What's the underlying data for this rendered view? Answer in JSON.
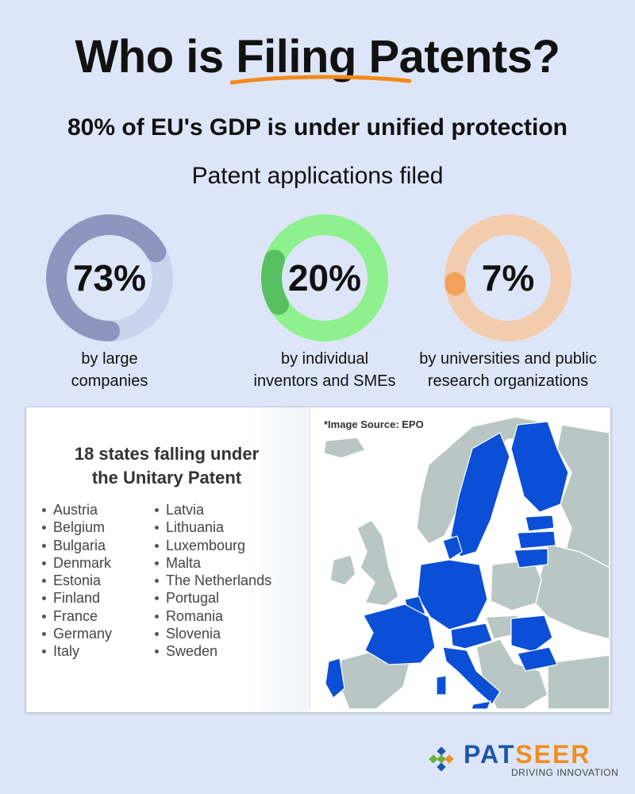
{
  "header": {
    "title_prefix": "Who is ",
    "title_highlight": "Filing Patents?",
    "subtitle": "80% of EU's GDP is under unified protection",
    "section_title": "Patent applications filed"
  },
  "stats": [
    {
      "value": "73%",
      "fraction": 0.73,
      "label_line1": "by large",
      "label_line2": "companies",
      "ring_color": "#8e96bf",
      "track_color": "#c9d3ec"
    },
    {
      "value": "20%",
      "fraction": 0.2,
      "label_line1": "by individual",
      "label_line2": "inventors and SMEs",
      "ring_color": "#58c060",
      "track_color": "#8ff08e"
    },
    {
      "value": "7%",
      "fraction": 0.07,
      "label_line1": "by universities and public",
      "label_line2": "research organizations",
      "ring_color": "#f2a25a",
      "track_color": "#f3ccae"
    }
  ],
  "states_panel": {
    "title_line1": "18 states falling under",
    "title_line2": "the Unitary Patent",
    "column_a": [
      "Austria",
      "Belgium",
      "Bulgaria",
      "Denmark",
      "Estonia",
      "Finland",
      "France",
      "Germany",
      "Italy"
    ],
    "column_b": [
      "Latvia",
      "Lithuania",
      "Luxembourg",
      "Malta",
      "The Netherlands",
      "Portugal",
      "Romania",
      "Slovenia",
      "Sweden"
    ]
  },
  "map": {
    "source_note": "*Image Source: EPO",
    "member_color": "#0b4fd6",
    "other_color": "#b8c6c4"
  },
  "brand": {
    "name_part1": "PAT",
    "name_part2": "SEER",
    "tagline": "DRIVING INNOVATION"
  }
}
